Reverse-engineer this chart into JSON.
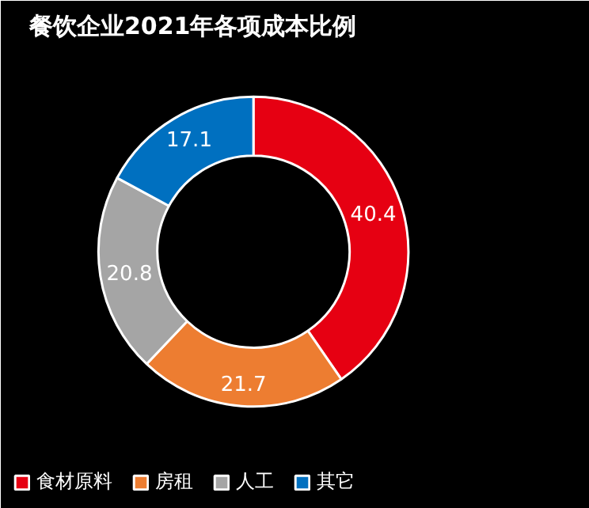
{
  "chart_data": {
    "type": "donut",
    "title": "餐饮企业2021年各项成本比例",
    "categories": [
      "食材原料",
      "房租",
      "人工",
      "其它"
    ],
    "values": [
      40.4,
      21.7,
      20.8,
      17.1
    ],
    "colors": [
      "#e60012",
      "#ed7d31",
      "#a5a5a5",
      "#0070c0"
    ],
    "data_labels": true,
    "legend": "bottom"
  }
}
